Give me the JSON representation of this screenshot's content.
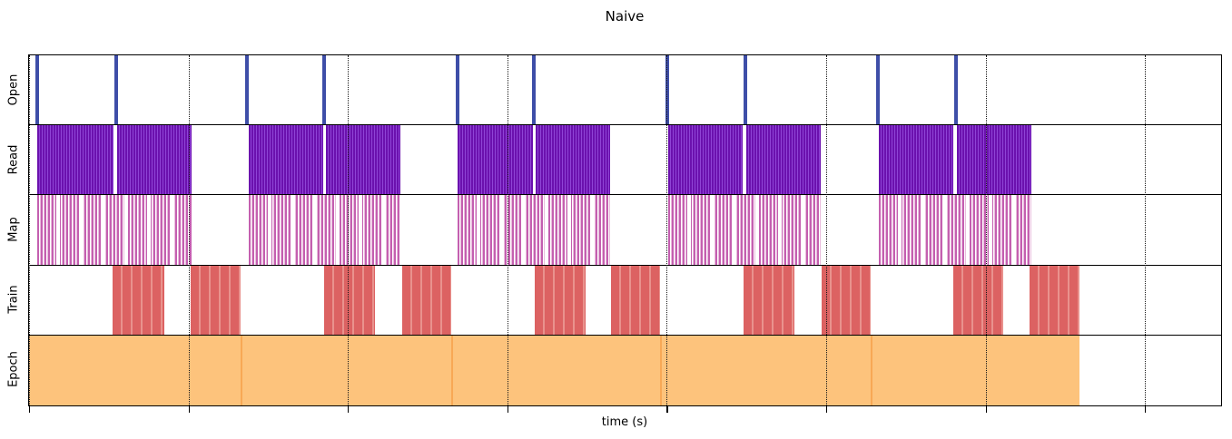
{
  "title": "Naive",
  "xlabel": "time (s)",
  "colors": {
    "open": "#3e4ea8",
    "read_dark": "#6b11ae",
    "read_light": "#8f44d6",
    "map": "#c45fb0",
    "map_light": "#e9bcdd",
    "train": "#dc6262",
    "train_light": "#e9928d",
    "epoch": "#fdc37c",
    "epoch_edge": "#f8a855"
  },
  "chart_data": {
    "type": "timeline",
    "title": "Naive",
    "xlabel": "time (s)",
    "ylabel": "",
    "x_unit": "percent_of_visible_x_axis",
    "grid": "vertical dotted gridlines at each x tick; no tick labels shown",
    "legend": "none",
    "x_axis": {
      "tick_positions_pct": [
        0,
        13.37,
        26.75,
        40.12,
        53.49,
        66.87,
        80.24,
        93.61
      ],
      "tick_labels": []
    },
    "rows": [
      {
        "label": "Open",
        "kind": "event_lines",
        "color_key": "open",
        "events_pct": [
          0.68,
          7.3,
          18.29,
          24.79,
          35.97,
          42.36,
          53.54,
          60.08,
          71.18,
          77.76
        ]
      },
      {
        "label": "Read",
        "kind": "striped_blocks",
        "color_key": "read",
        "intervals_pct": [
          [
            0.68,
            7.07
          ],
          [
            7.38,
            13.65
          ],
          [
            18.4,
            24.64
          ],
          [
            24.87,
            31.18
          ],
          [
            35.97,
            42.24
          ],
          [
            42.51,
            48.78
          ],
          [
            53.61,
            59.85
          ],
          [
            60.15,
            66.43
          ],
          [
            71.25,
            77.57
          ],
          [
            77.83,
            84.11
          ]
        ]
      },
      {
        "label": "Map",
        "kind": "sparse_stripe_spans",
        "color_key": "map",
        "intervals_pct": [
          [
            0.68,
            13.65
          ],
          [
            18.4,
            31.18
          ],
          [
            35.97,
            48.78
          ],
          [
            53.61,
            66.43
          ],
          [
            71.25,
            84.11
          ]
        ]
      },
      {
        "label": "Train",
        "kind": "striped_blocks",
        "color_key": "train",
        "intervals_pct": [
          [
            7.03,
            11.33
          ],
          [
            13.54,
            17.76
          ],
          [
            24.75,
            29.01
          ],
          [
            31.29,
            35.44
          ],
          [
            42.43,
            46.69
          ],
          [
            48.82,
            52.97
          ],
          [
            59.96,
            64.18
          ],
          [
            66.5,
            70.61
          ],
          [
            77.53,
            81.75
          ],
          [
            83.95,
            88.14
          ]
        ]
      },
      {
        "label": "Epoch",
        "kind": "solid_blocks",
        "color_key": "epoch",
        "intervals_pct": [
          [
            0,
            17.76
          ],
          [
            17.76,
            35.44
          ],
          [
            35.44,
            52.97
          ],
          [
            52.97,
            70.61
          ],
          [
            70.61,
            88.14
          ]
        ]
      }
    ]
  }
}
